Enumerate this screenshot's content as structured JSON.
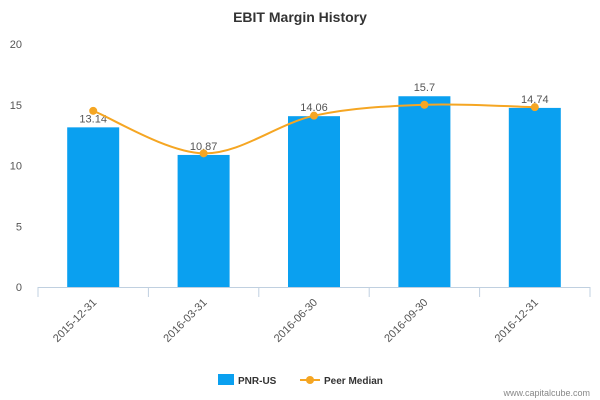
{
  "chart_data": {
    "type": "bar",
    "title": "EBIT Margin History",
    "categories": [
      "2015-12-31",
      "2016-03-31",
      "2016-06-30",
      "2016-09-30",
      "2016-12-31"
    ],
    "series": [
      {
        "name": "PNR-US",
        "type": "bar",
        "color": "#0aa0f0",
        "values": [
          13.14,
          10.87,
          14.06,
          15.7,
          14.74
        ],
        "labels": [
          "13.14",
          "10.87",
          "14.06",
          "15.7",
          "14.74"
        ]
      },
      {
        "name": "Peer Median",
        "type": "line",
        "color": "#f5a623",
        "values": [
          14.5,
          11.0,
          14.1,
          15.0,
          14.8
        ]
      }
    ],
    "ylim": [
      0,
      20
    ],
    "yticks": [
      "0",
      "5",
      "10",
      "15",
      "20"
    ],
    "ytick_values": [
      0,
      5,
      10,
      15,
      20
    ],
    "xlabel": "",
    "ylabel": "",
    "grid": false,
    "legend_position": "bottom-center"
  },
  "credit": "www.capitalcube.com"
}
